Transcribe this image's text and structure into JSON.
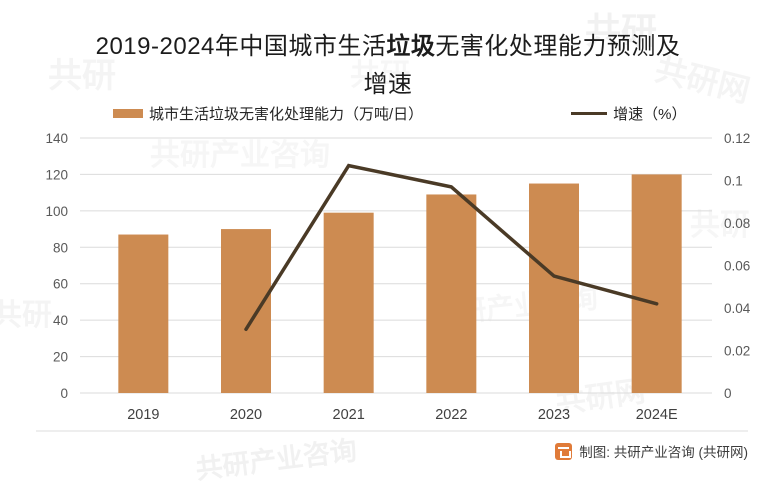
{
  "title": {
    "prefix": "2019-2024年中国城市生活",
    "emphasis": "垃圾",
    "suffix": "无害化处理能力预测及",
    "line2": "增速"
  },
  "legend": {
    "bar_label": "城市生活垃圾无害化处理能力（万吨/日）",
    "line_label": "增速（%）"
  },
  "footer": {
    "credit_label": "制图: 共研产业咨询 (共研网)"
  },
  "watermarks": [
    "共研网",
    "共研产业咨询",
    "共研"
  ],
  "colors": {
    "bar": "#cd8b51",
    "line": "#4a3a26",
    "grid": "#dbdbdb",
    "axis_text": "#595959",
    "x_label": "#404040",
    "separator": "#e4e4e4",
    "logo": "#e07b39"
  },
  "chart_data": {
    "type": "bar",
    "subtype": "bar+line combo, dual axis",
    "title": "2019-2024年中国城市生活垃圾无害化处理能力预测及增速",
    "categories": [
      "2019",
      "2020",
      "2021",
      "2022",
      "2023",
      "2024E"
    ],
    "series": [
      {
        "name": "城市生活垃圾无害化处理能力（万吨/日）",
        "type": "bar",
        "axis": "left",
        "values": [
          87,
          90,
          99,
          109,
          115,
          120
        ]
      },
      {
        "name": "增速（%）",
        "type": "line",
        "axis": "right",
        "values": [
          null,
          0.03,
          0.107,
          0.097,
          0.055,
          0.042
        ]
      }
    ],
    "left_axis": {
      "min": 0,
      "max": 140,
      "step": 20,
      "tick_labels": [
        "0",
        "20",
        "40",
        "60",
        "80",
        "100",
        "120",
        "140"
      ]
    },
    "right_axis": {
      "min": 0,
      "max": 0.12,
      "step": 0.02,
      "tick_labels": [
        "0",
        "0.02",
        "0.04",
        "0.06",
        "0.08",
        "0.1",
        "0.12"
      ]
    },
    "grid": true,
    "legend_position": "top"
  }
}
